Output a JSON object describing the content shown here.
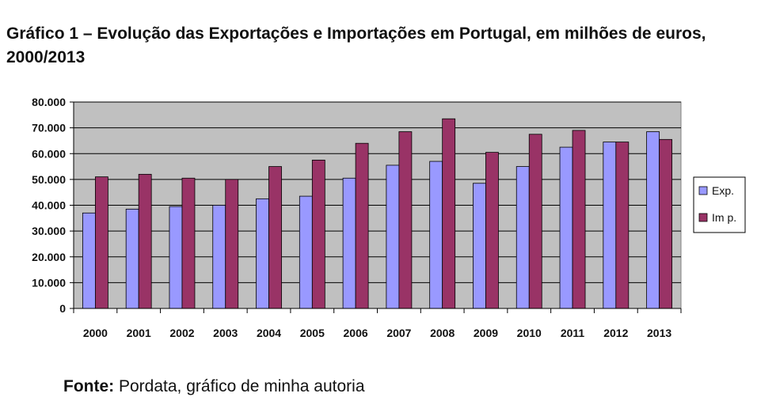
{
  "title": "Gráfico 1 – Evolução das Exportações e Importações em Portugal, em milhões de euros, 2000/2013",
  "source": {
    "label": "Fonte:",
    "text": " Pordata, gráfico de minha autoria"
  },
  "colors": {
    "exp": "#9999ff",
    "imp": "#993366",
    "plot_bg": "#c0c0c0",
    "grid": "#000000"
  },
  "chart_data": {
    "type": "bar",
    "categories": [
      "2000",
      "2001",
      "2002",
      "2003",
      "2004",
      "2005",
      "2006",
      "2007",
      "2008",
      "2009",
      "2010",
      "2011",
      "2012",
      "2013"
    ],
    "series": [
      {
        "name": "Exp.",
        "values": [
          37000,
          38500,
          39500,
          40000,
          42500,
          43500,
          50500,
          55500,
          57000,
          48500,
          55000,
          62500,
          64500,
          68500
        ]
      },
      {
        "name": "Im p.",
        "values": [
          51000,
          52000,
          50500,
          50000,
          55000,
          57500,
          64000,
          68500,
          73500,
          60500,
          67500,
          69000,
          64500,
          65500
        ]
      }
    ],
    "ylim": [
      0,
      80000
    ],
    "yticks": [
      "0",
      "10.000",
      "20.000",
      "30.000",
      "40.000",
      "50.000",
      "60.000",
      "70.000",
      "80.000"
    ],
    "grid": true,
    "legend": "right"
  }
}
